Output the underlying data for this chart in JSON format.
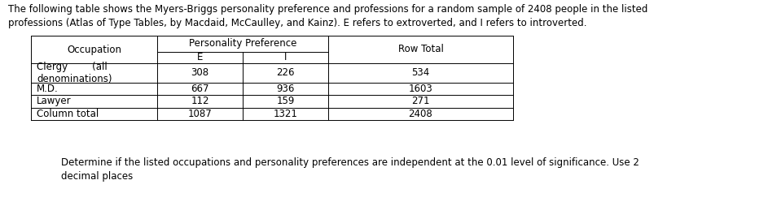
{
  "intro_text_line1": "The following table shows the Myers-Briggs personality preference and professions for a random sample of 2408 people in the listed",
  "intro_text_line2": "professions (Atlas of Type Tables, by Macdaid, McCaulley, and Kainz). E refers to extroverted, and I refers to introverted.",
  "footer_text_line1": "Determine if the listed occupations and personality preferences are independent at the 0.01 level of significance. Use 2",
  "footer_text_line2": "decimal places",
  "rows": [
    [
      "Clergy        (all\ndenominations)",
      "308",
      "226",
      "534"
    ],
    [
      "M.D.",
      "667",
      "936",
      "1603"
    ],
    [
      "Lawyer",
      "112",
      "159",
      "271"
    ],
    [
      "Column total",
      "1087",
      "1321",
      "2408"
    ]
  ],
  "font_size": 8.5,
  "text_color": "#000000",
  "bg_color": "#ffffff",
  "table_border_color": "#000000",
  "fig_width": 9.43,
  "fig_height": 2.54,
  "dpi": 100
}
